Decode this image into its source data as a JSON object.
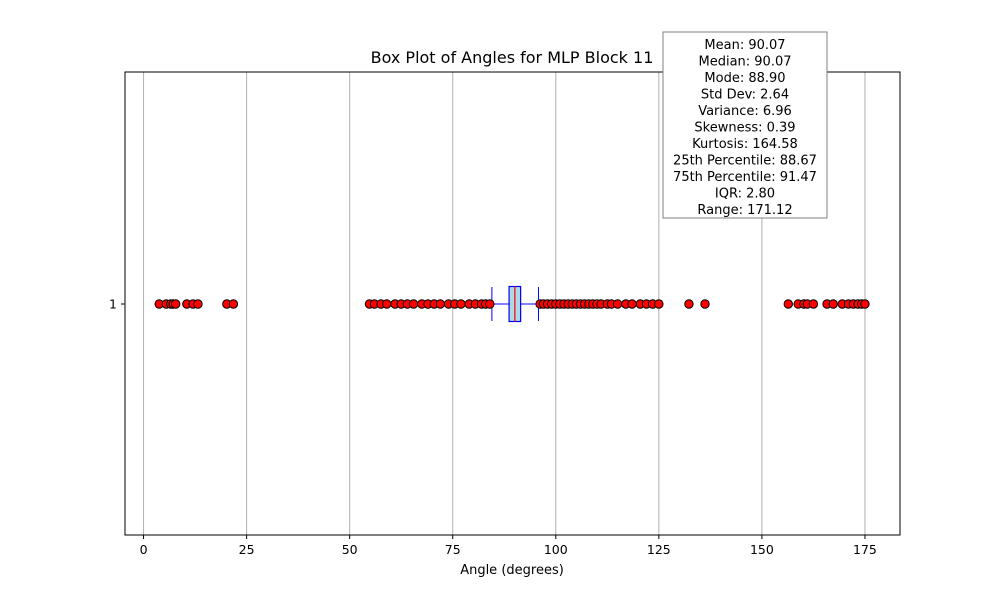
{
  "chart_data": {
    "type": "box",
    "orientation": "horizontal",
    "title": "Box Plot of Angles for MLP Block 11",
    "xlabel": "Angle (degrees)",
    "ylabel": "",
    "xlim": [
      -4.5,
      183.5
    ],
    "x_ticks": [
      0,
      25,
      50,
      75,
      100,
      125,
      150,
      175
    ],
    "x_tick_labels": [
      "0",
      "25",
      "50",
      "75",
      "100",
      "125",
      "150",
      "175"
    ],
    "y_ticks": [
      1
    ],
    "y_tick_labels": [
      "1"
    ],
    "grid": "vertical",
    "box": {
      "category": "1",
      "q1": 88.67,
      "median": 90.07,
      "q3": 91.47,
      "whisker_low": 84.5,
      "whisker_high": 95.8
    },
    "outliers": [
      3.8,
      5.5,
      6.6,
      7.2,
      7.8,
      10.5,
      12.0,
      13.2,
      20.2,
      21.8,
      54.8,
      56.0,
      57.6,
      59.0,
      61.0,
      62.5,
      64.0,
      65.5,
      67.5,
      69.0,
      70.5,
      72.0,
      74.0,
      75.5,
      77.0,
      79.0,
      80.5,
      82.0,
      83.0,
      84.0,
      96.2,
      97.0,
      98.0,
      99.0,
      100.0,
      101.0,
      102.0,
      103.0,
      104.0,
      105.0,
      106.0,
      107.0,
      108.0,
      109.0,
      110.0,
      111.0,
      112.5,
      113.5,
      115.0,
      117.0,
      118.5,
      120.5,
      122.0,
      123.5,
      125.0,
      132.3,
      136.2,
      156.4,
      158.8,
      160.2,
      161.0,
      162.5,
      165.8,
      167.3,
      169.5,
      171.0,
      172.2,
      173.3,
      174.2,
      175.0
    ],
    "stats_box_lines": [
      "Mean: 90.07",
      "Median: 90.07",
      "Mode: 88.90",
      "Std Dev: 2.64",
      "Variance: 6.96",
      "Skewness: 0.39",
      "Kurtosis: 164.58",
      "25th Percentile: 88.67",
      "75th Percentile: 91.47",
      "IQR: 2.80",
      "Range: 171.12"
    ],
    "colors": {
      "box_fill": "#add8e6",
      "box_edge": "#0000ff",
      "median": "#ff0000",
      "whisker": "#0000ff",
      "outlier_fill": "#ff0000",
      "outlier_edge": "#000000",
      "grid": "#b0b0b0",
      "stats_box_edge": "#808080"
    }
  }
}
